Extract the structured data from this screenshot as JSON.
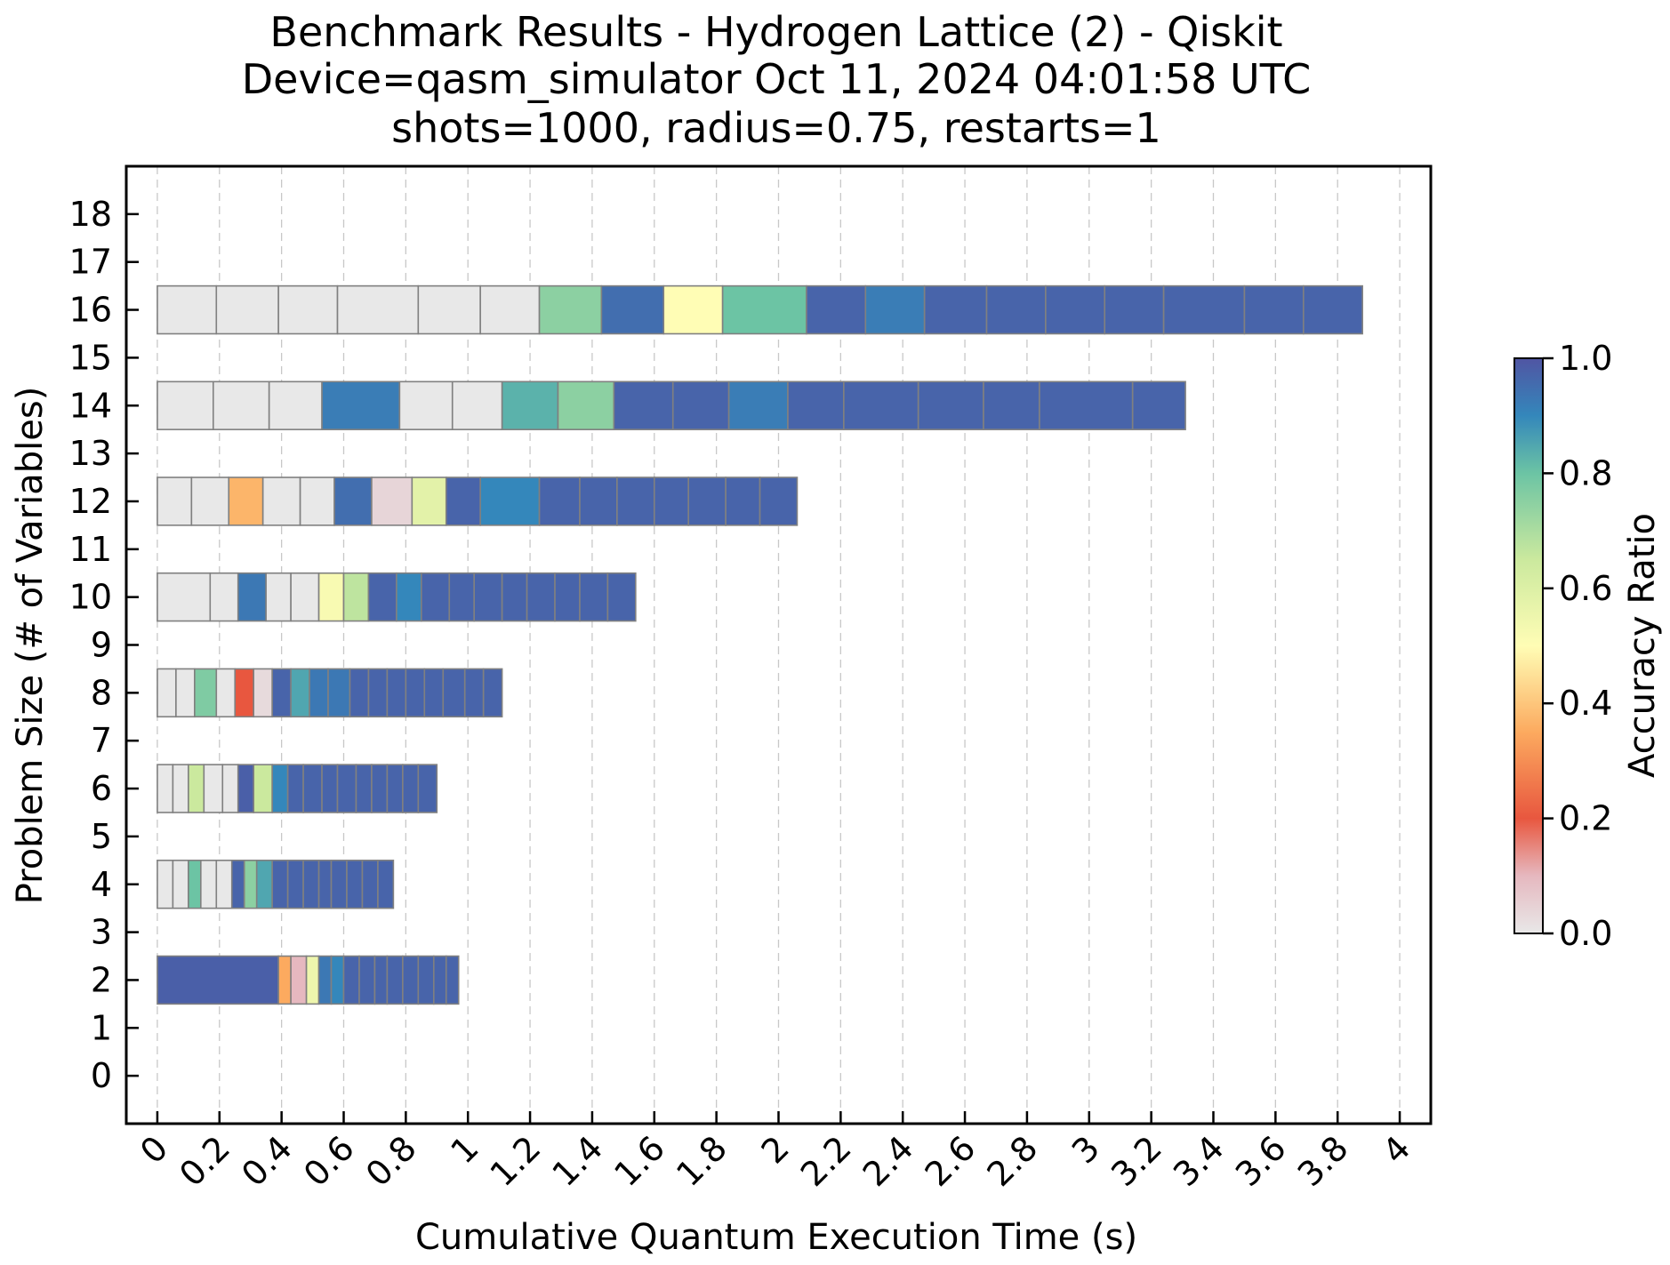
{
  "chart_data": {
    "type": "heatmap",
    "title_lines": [
      "Benchmark Results - Hydrogen Lattice (2) - Qiskit",
      "Device=qasm_simulator  Oct 11, 2024 04:01:58 UTC",
      "shots=1000, radius=0.75, restarts=1"
    ],
    "xlabel": "Cumulative Quantum Execution Time (s)",
    "ylabel": "Problem Size (# of Variables)",
    "xlim": [
      -0.1,
      4.1
    ],
    "ylim": [
      -1,
      19
    ],
    "xticks": [
      "0",
      "0.2",
      "0.4",
      "0.6",
      "0.8",
      "1",
      "1.2",
      "1.4",
      "1.6",
      "1.8",
      "2",
      "2.2",
      "2.4",
      "2.6",
      "2.8",
      "3",
      "3.2",
      "3.4",
      "3.6",
      "3.8",
      "4"
    ],
    "yticks": [
      "0",
      "1",
      "2",
      "3",
      "4",
      "5",
      "6",
      "7",
      "8",
      "9",
      "10",
      "11",
      "12",
      "13",
      "14",
      "15",
      "16",
      "17",
      "18"
    ],
    "grid": "vertical dashed",
    "colorbar": {
      "label": "Accuracy Ratio",
      "range": [
        0,
        1
      ],
      "ticks": [
        "0.0",
        "0.2",
        "0.4",
        "0.6",
        "0.8",
        "1.0"
      ]
    },
    "rows": [
      {
        "size": 2,
        "times": [
          0,
          0.39,
          0.43,
          0.48,
          0.52,
          0.56,
          0.6,
          0.65,
          0.7,
          0.74,
          0.79,
          0.84,
          0.89,
          0.93,
          0.97
        ],
        "accuracy": [
          0.98,
          0.35,
          0.1,
          0.55,
          0.93,
          0.9,
          0.97,
          0.97,
          0.97,
          0.97,
          0.97,
          0.97,
          0.97,
          0.97
        ]
      },
      {
        "size": 4,
        "times": [
          0,
          0.05,
          0.1,
          0.14,
          0.19,
          0.24,
          0.28,
          0.32,
          0.37,
          0.42,
          0.47,
          0.52,
          0.56,
          0.61,
          0.66,
          0.71,
          0.76
        ],
        "accuracy": [
          0.0,
          0.0,
          0.8,
          0.0,
          0.0,
          0.97,
          0.75,
          0.85,
          0.97,
          0.97,
          0.97,
          0.97,
          0.97,
          0.97,
          0.97,
          0.97
        ]
      },
      {
        "size": 6,
        "times": [
          0,
          0.05,
          0.1,
          0.15,
          0.21,
          0.26,
          0.31,
          0.37,
          0.42,
          0.47,
          0.53,
          0.58,
          0.64,
          0.69,
          0.74,
          0.79,
          0.84,
          0.9
        ],
        "accuracy": [
          0.0,
          0.0,
          0.65,
          0.0,
          0.0,
          0.98,
          0.65,
          0.9,
          0.97,
          0.97,
          0.97,
          0.97,
          0.97,
          0.97,
          0.97,
          0.97,
          0.97
        ]
      },
      {
        "size": 8,
        "times": [
          0,
          0.06,
          0.12,
          0.19,
          0.25,
          0.31,
          0.37,
          0.43,
          0.49,
          0.55,
          0.62,
          0.68,
          0.74,
          0.8,
          0.86,
          0.92,
          0.99,
          1.05,
          1.11
        ],
        "accuracy": [
          0.0,
          0.0,
          0.77,
          0.0,
          0.2,
          0.03,
          0.97,
          0.85,
          0.93,
          0.93,
          0.97,
          0.97,
          0.97,
          0.97,
          0.97,
          0.97,
          0.97,
          0.97
        ]
      },
      {
        "size": 10,
        "times": [
          0,
          0.17,
          0.26,
          0.35,
          0.43,
          0.52,
          0.6,
          0.68,
          0.77,
          0.85,
          0.94,
          1.02,
          1.11,
          1.19,
          1.28,
          1.36,
          1.45,
          1.54
        ],
        "accuracy": [
          0.0,
          0.0,
          0.93,
          0.0,
          0.0,
          0.52,
          0.67,
          0.97,
          0.9,
          0.97,
          0.97,
          0.97,
          0.97,
          0.97,
          0.97,
          0.97,
          0.97
        ]
      },
      {
        "size": 12,
        "times": [
          0,
          0.11,
          0.23,
          0.34,
          0.46,
          0.57,
          0.69,
          0.82,
          0.93,
          1.04,
          1.23,
          1.36,
          1.48,
          1.6,
          1.71,
          1.83,
          1.94,
          2.06
        ],
        "accuracy": [
          0.0,
          0.0,
          0.37,
          0.0,
          0.0,
          0.95,
          0.04,
          0.58,
          0.97,
          0.9,
          0.97,
          0.97,
          0.97,
          0.97,
          0.97,
          0.97,
          0.97
        ]
      },
      {
        "size": 14,
        "times": [
          0,
          0.18,
          0.36,
          0.53,
          0.78,
          0.95,
          1.11,
          1.29,
          1.47,
          1.66,
          1.84,
          2.03,
          2.21,
          2.45,
          2.66,
          2.84,
          3.14,
          3.31
        ],
        "accuracy": [
          0.0,
          0.0,
          0.0,
          0.92,
          0.0,
          0.0,
          0.83,
          0.75,
          0.97,
          0.97,
          0.92,
          0.97,
          0.97,
          0.97,
          0.97,
          0.97,
          0.97
        ]
      },
      {
        "size": 16,
        "times": [
          0,
          0.19,
          0.39,
          0.58,
          0.84,
          1.04,
          1.23,
          1.43,
          1.63,
          1.82,
          2.09,
          2.28,
          2.47,
          2.67,
          2.86,
          3.05,
          3.24,
          3.5,
          3.69,
          3.88
        ],
        "accuracy": [
          0.0,
          0.0,
          0.0,
          0.0,
          0.0,
          0.0,
          0.75,
          0.95,
          0.5,
          0.8,
          0.97,
          0.92,
          0.97,
          0.97,
          0.97,
          0.97,
          0.97,
          0.97,
          0.97
        ]
      }
    ]
  }
}
